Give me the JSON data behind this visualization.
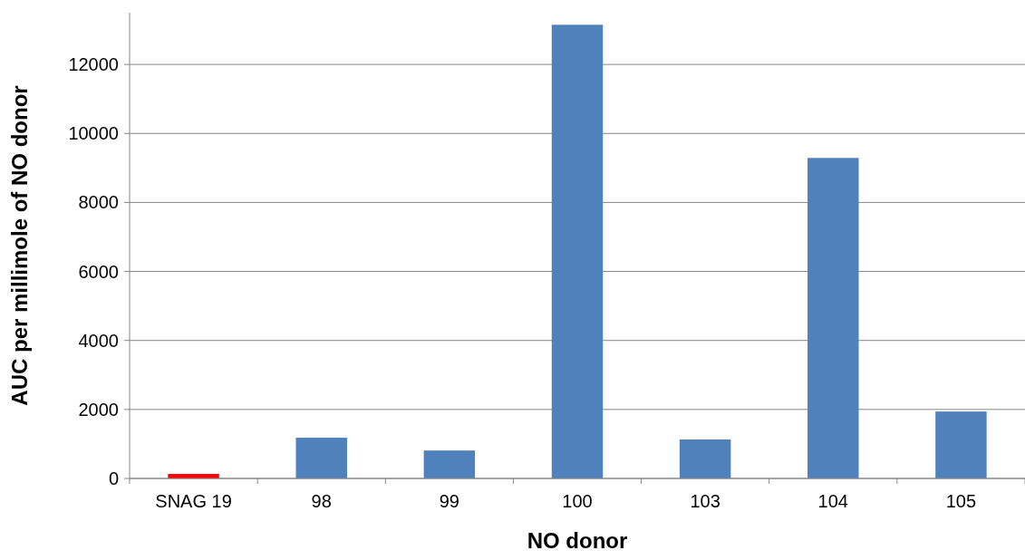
{
  "chart_data": {
    "type": "bar",
    "xlabel": "NO donor",
    "ylabel": "AUC per millimole of NO donor",
    "categories": [
      "SNAG 19",
      "98",
      "99",
      "100",
      "103",
      "104",
      "105"
    ],
    "values": [
      130,
      1180,
      810,
      13150,
      1130,
      9290,
      1940
    ],
    "colors": [
      "#ff0000",
      "#4f81bd",
      "#4f81bd",
      "#4f81bd",
      "#4f81bd",
      "#4f81bd",
      "#4f81bd"
    ],
    "ylim": [
      0,
      13500
    ],
    "yticks": [
      0,
      2000,
      4000,
      6000,
      8000,
      10000,
      12000
    ],
    "grid": "y"
  }
}
